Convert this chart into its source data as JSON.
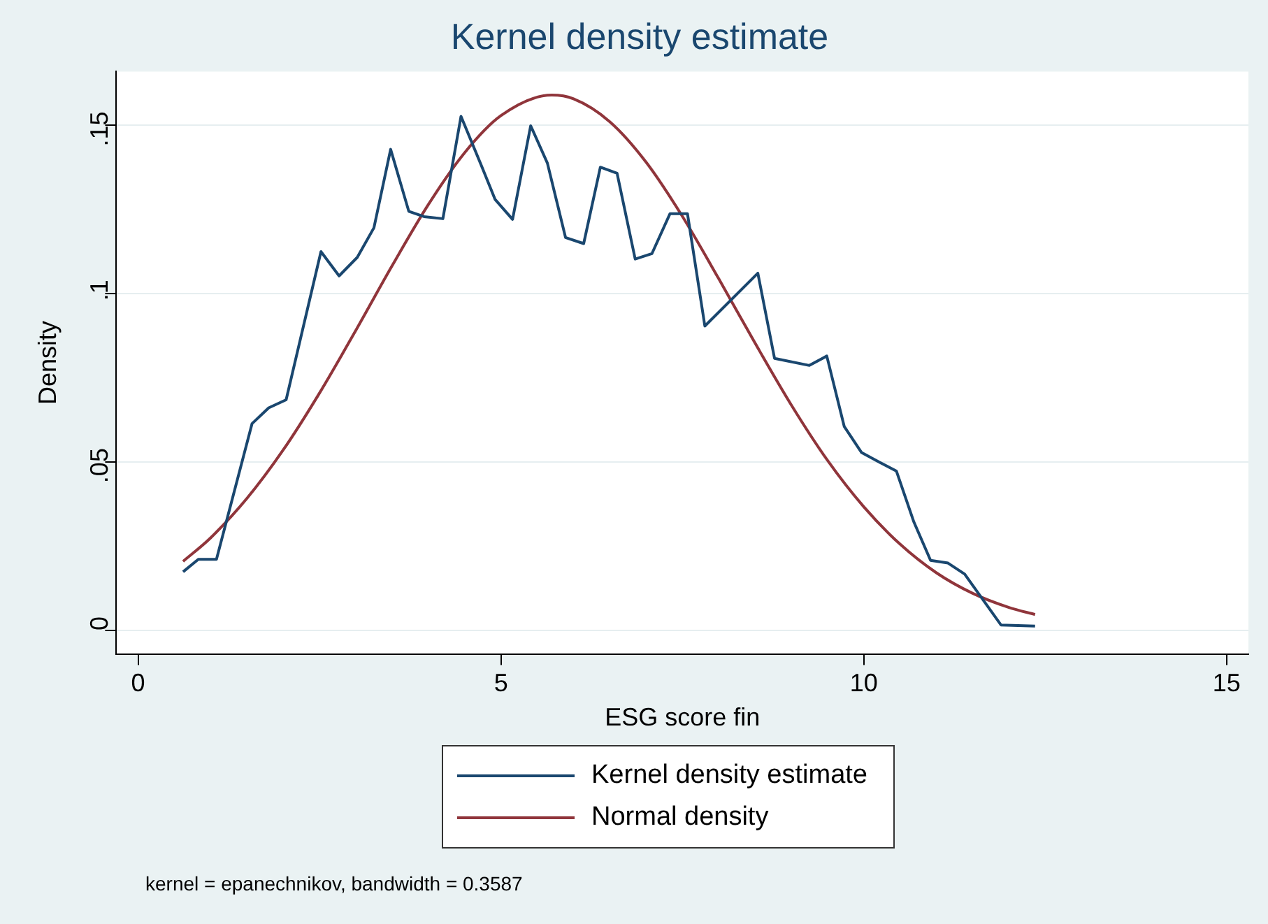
{
  "chart_data": {
    "type": "line",
    "title": "Kernel density estimate",
    "xlabel": "ESG score fin",
    "ylabel": "Density",
    "xlim": [
      -0.3,
      15.3
    ],
    "xticks": [
      0,
      5,
      10,
      15
    ],
    "ylim": [
      -0.007,
      0.166
    ],
    "yticks": [
      0,
      {
        "value": 0.05,
        "label": ".05"
      },
      {
        "value": 0.1,
        "label": ".1"
      },
      {
        "value": 0.15,
        "label": ".15"
      }
    ],
    "grid": "y",
    "legend": "bottom",
    "marker": "none",
    "line_style": "solid",
    "annotations": [
      "kernel = epanechnikov, bandwidth = 0.3587"
    ],
    "series": [
      {
        "name": "Kernel density estimate",
        "color": "#1a476f",
        "x": [
          0.62,
          0.83,
          1.08,
          1.57,
          1.8,
          2.04,
          2.52,
          2.77,
          3.02,
          3.25,
          3.48,
          3.73,
          3.94,
          4.2,
          4.45,
          4.73,
          4.92,
          5.16,
          5.41,
          5.64,
          5.89,
          6.14,
          6.37,
          6.6,
          6.85,
          7.08,
          7.33,
          7.57,
          7.81,
          8.54,
          8.77,
          9.25,
          9.49,
          9.73,
          9.97,
          10.21,
          10.45,
          10.69,
          10.92,
          11.16,
          11.39,
          11.89,
          12.36
        ],
        "values": [
          0.0174,
          0.0211,
          0.0211,
          0.0614,
          0.0661,
          0.0685,
          0.1125,
          0.1053,
          0.1108,
          0.1196,
          0.1429,
          0.1245,
          0.1229,
          0.1223,
          0.1527,
          0.1381,
          0.128,
          0.1221,
          0.1499,
          0.1388,
          0.1167,
          0.1149,
          0.1376,
          0.1358,
          0.1103,
          0.1119,
          0.1238,
          0.1238,
          0.0904,
          0.1061,
          0.0808,
          0.0787,
          0.0815,
          0.0606,
          0.0528,
          0.05,
          0.0473,
          0.0322,
          0.0208,
          0.02,
          0.0167,
          0.0016,
          0.0013
        ]
      },
      {
        "name": "Normal density",
        "color": "#90353b",
        "x": [
          0.62,
          1,
          1.5,
          2,
          2.5,
          3,
          3.5,
          4,
          4.5,
          5,
          5.7,
          6,
          6.5,
          7,
          7.5,
          8,
          8.5,
          9,
          9.5,
          10,
          10.5,
          11,
          11.5,
          12,
          12.36
        ],
        "values": [
          0.0205,
          0.0275,
          0.0392,
          0.0536,
          0.0705,
          0.0891,
          0.1083,
          0.1265,
          0.1419,
          0.1529,
          0.159,
          0.1579,
          0.1511,
          0.1391,
          0.123,
          0.1045,
          0.0854,
          0.067,
          0.0505,
          0.0367,
          0.0256,
          0.0171,
          0.011,
          0.0068,
          0.0047
        ]
      }
    ]
  }
}
